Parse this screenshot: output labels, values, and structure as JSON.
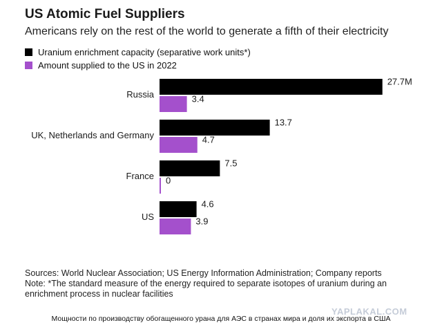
{
  "header": {
    "title": "US Atomic Fuel Suppliers",
    "subtitle": "Americans rely on the rest of the world to generate a fifth of their electricity"
  },
  "colors": {
    "series_1": "#000000",
    "series_2": "#a450cc"
  },
  "chart_data": {
    "type": "bar",
    "orientation": "horizontal",
    "categories": [
      "Russia",
      "UK, Netherlands and Germany",
      "France",
      "US"
    ],
    "series": [
      {
        "name": "Uranium enrichment capacity (separative work units*)",
        "values": [
          27.7,
          13.7,
          7.5,
          4.6
        ],
        "labels": [
          "27.7M",
          "13.7",
          "7.5",
          "4.6"
        ]
      },
      {
        "name": "Amount supplied to the US in 2022",
        "values": [
          3.4,
          4.7,
          0,
          3.9
        ],
        "labels": [
          "3.4",
          "4.7",
          "0",
          "3.9"
        ]
      }
    ],
    "legend": "top-left",
    "grid": false
  },
  "footer": {
    "sources": "Sources: World Nuclear Association; US Energy Information Administration; Company reports",
    "note": "Note: *The standard measure of the energy required to separate isotopes of uranium during an enrichment process in nuclear facilities"
  },
  "caption": "Мощности по производству обогащенного урана для АЭС в странах мира и доля их экспорта в США",
  "watermark": "YAPLAKAL.COM"
}
